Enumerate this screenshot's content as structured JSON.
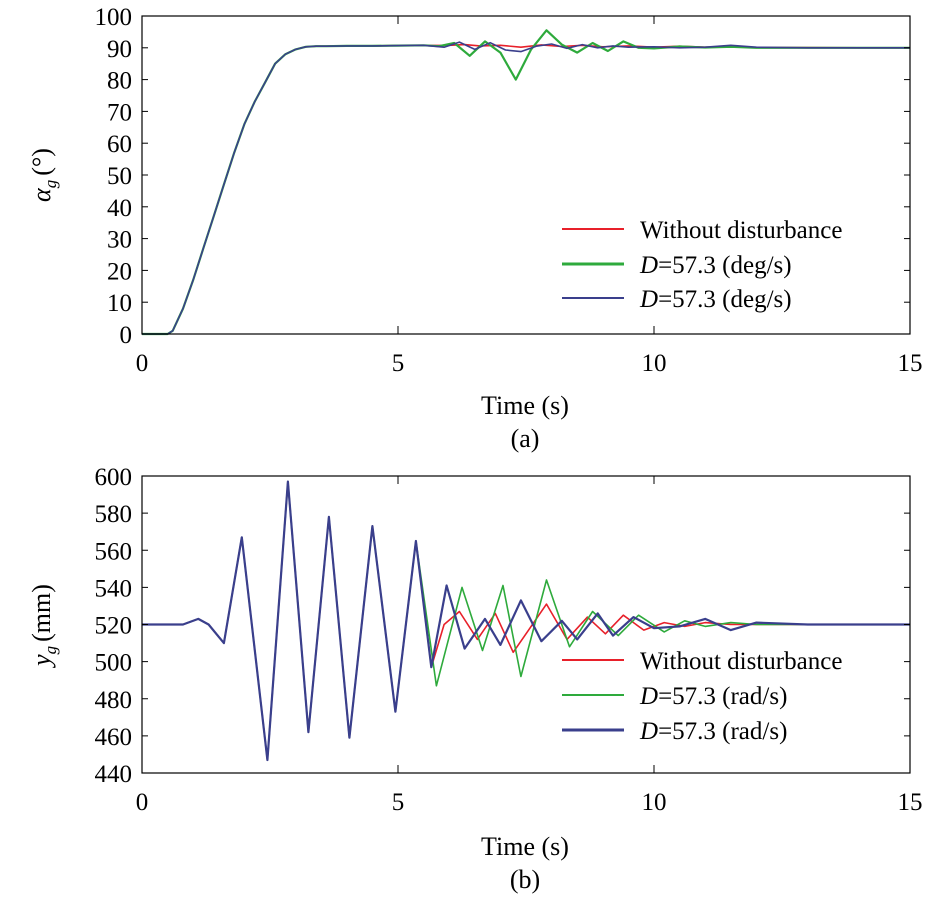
{
  "chart_data": [
    {
      "type": "line",
      "xlabel": "Time (s)",
      "ylabel_main": "α",
      "ylabel_sub": "g",
      "ylabel_unit": "(°)",
      "caption": "(a)",
      "xlim": [
        0,
        15
      ],
      "ylim": [
        0,
        100
      ],
      "xticks": [
        "0",
        "5",
        "10",
        "15"
      ],
      "yticks": [
        "0",
        "10",
        "20",
        "30",
        "40",
        "50",
        "60",
        "70",
        "80",
        "90",
        "100"
      ],
      "legend_position": "bottom-right",
      "series": [
        {
          "name": "Without disturbance",
          "color": "#e8202a",
          "x": [
            0,
            0.5,
            0.6,
            0.8,
            1.0,
            1.2,
            1.4,
            1.6,
            1.8,
            2.0,
            2.2,
            2.4,
            2.6,
            2.8,
            3.0,
            3.2,
            3.4,
            3.6,
            4.0,
            4.5,
            5.0,
            5.5,
            6.0,
            6.3,
            6.6,
            7.0,
            7.4,
            7.8,
            8.2,
            8.6,
            9.0,
            9.5,
            10.0,
            10.5,
            11.0,
            11.5,
            12.0,
            13.0,
            14.0,
            15.0
          ],
          "y": [
            0,
            0,
            1,
            8,
            17,
            27,
            37,
            47,
            57,
            66,
            73,
            79,
            85,
            88,
            89.5,
            90.3,
            90.5,
            90.5,
            90.6,
            90.6,
            90.7,
            90.7,
            90.8,
            91.0,
            90.6,
            90.8,
            90.2,
            90.9,
            90.4,
            90.8,
            90.3,
            90.6,
            90.2,
            90.5,
            90.2,
            90.3,
            90.1,
            90.1,
            90.0,
            90.0
          ]
        },
        {
          "name": "D=57.3 (deg/s)",
          "color": "#2eaa3c",
          "x": [
            0,
            0.5,
            0.6,
            0.8,
            1.0,
            1.2,
            1.4,
            1.6,
            1.8,
            2.0,
            2.2,
            2.4,
            2.6,
            2.8,
            3.0,
            3.2,
            3.4,
            3.6,
            4.0,
            4.5,
            5.0,
            5.5,
            5.8,
            6.1,
            6.4,
            6.7,
            7.0,
            7.3,
            7.6,
            7.9,
            8.2,
            8.5,
            8.8,
            9.1,
            9.4,
            9.7,
            10.0,
            10.5,
            11.0,
            11.5,
            12.0,
            13.0,
            14.0,
            15.0
          ],
          "y": [
            0,
            0,
            1,
            8,
            17,
            27,
            37,
            47,
            57,
            66,
            73,
            79,
            85,
            88,
            89.5,
            90.3,
            90.5,
            90.5,
            90.6,
            90.6,
            90.7,
            90.8,
            90.5,
            91.5,
            87.5,
            92.0,
            88.5,
            80.0,
            89.5,
            95.5,
            91.0,
            88.5,
            91.5,
            89.0,
            92.0,
            90.0,
            89.8,
            90.4,
            90.1,
            90.3,
            90.0,
            90.0,
            90.0,
            90.0
          ]
        },
        {
          "name": "D=57.3 (deg/s)",
          "color": "#3a3f8c",
          "x": [
            0,
            0.5,
            0.6,
            0.8,
            1.0,
            1.2,
            1.4,
            1.6,
            1.8,
            2.0,
            2.2,
            2.4,
            2.6,
            2.8,
            3.0,
            3.2,
            3.4,
            3.6,
            4.0,
            4.5,
            5.0,
            5.5,
            5.9,
            6.2,
            6.5,
            6.8,
            7.1,
            7.4,
            7.7,
            8.0,
            8.3,
            8.6,
            8.9,
            9.2,
            9.5,
            10.0,
            10.5,
            11.0,
            11.5,
            12.0,
            13.0,
            14.0,
            15.0
          ],
          "y": [
            0,
            0,
            1,
            8,
            17,
            27,
            37,
            47,
            57,
            66,
            73,
            79,
            85,
            88,
            89.5,
            90.3,
            90.5,
            90.5,
            90.6,
            90.6,
            90.7,
            90.8,
            90.2,
            91.8,
            89.5,
            91.6,
            89.3,
            88.8,
            90.5,
            91.2,
            89.8,
            91.0,
            90.0,
            90.6,
            90.2,
            90.3,
            90.0,
            90.2,
            90.8,
            90.2,
            90.0,
            90.0,
            90.0
          ]
        }
      ]
    },
    {
      "type": "line",
      "xlabel": "Time (s)",
      "ylabel_main": "y",
      "ylabel_sub": "g",
      "ylabel_unit": "(mm)",
      "caption": "(b)",
      "xlim": [
        0,
        15
      ],
      "ylim": [
        440,
        600
      ],
      "xticks": [
        "0",
        "5",
        "10",
        "15"
      ],
      "yticks": [
        "440",
        "460",
        "480",
        "500",
        "520",
        "540",
        "560",
        "580",
        "600"
      ],
      "legend_position": "bottom-right",
      "series": [
        {
          "name": "Without disturbance",
          "color": "#e8202a",
          "x": [
            0,
            0.8,
            1.1,
            1.3,
            1.6,
            1.95,
            2.45,
            2.85,
            3.25,
            3.65,
            4.05,
            4.5,
            4.95,
            5.35,
            5.65,
            5.9,
            6.2,
            6.55,
            6.9,
            7.25,
            7.55,
            7.9,
            8.3,
            8.7,
            9.05,
            9.4,
            9.8,
            10.2,
            10.6,
            11.0,
            11.5,
            12.0,
            13.0,
            14.0,
            15.0
          ],
          "y": [
            520,
            520,
            523,
            520,
            510,
            567,
            447,
            597,
            462,
            578,
            459,
            573,
            473,
            565,
            497,
            520,
            527,
            512,
            526,
            505,
            517,
            531,
            512,
            524,
            515,
            525,
            517,
            521,
            519,
            521,
            520,
            520,
            520,
            520,
            520
          ]
        },
        {
          "name": "D=57.3 (rad/s)",
          "color": "#2eaa3c",
          "x": [
            0,
            0.8,
            1.1,
            1.3,
            1.6,
            1.95,
            2.45,
            2.85,
            3.25,
            3.65,
            4.05,
            4.5,
            4.95,
            5.35,
            5.75,
            6.25,
            6.65,
            7.05,
            7.4,
            7.9,
            8.35,
            8.8,
            9.3,
            9.7,
            10.2,
            10.6,
            11.0,
            11.5,
            12.0,
            13.0,
            14.0,
            15.0
          ],
          "y": [
            520,
            520,
            523,
            520,
            510,
            567,
            447,
            597,
            462,
            578,
            459,
            573,
            473,
            565,
            487,
            540,
            506,
            541,
            492,
            544,
            508,
            527,
            514,
            525,
            516,
            522,
            519,
            521,
            520,
            520,
            520,
            520
          ]
        },
        {
          "name": "D=57.3 (rad/s)",
          "color": "#3a3f8c",
          "x": [
            0,
            0.8,
            1.1,
            1.3,
            1.6,
            1.95,
            2.45,
            2.85,
            3.25,
            3.65,
            4.05,
            4.5,
            4.95,
            5.35,
            5.65,
            5.95,
            6.3,
            6.7,
            7.0,
            7.4,
            7.8,
            8.2,
            8.5,
            8.9,
            9.2,
            9.6,
            10.0,
            10.5,
            11.0,
            11.5,
            12.0,
            13.0,
            14.0,
            15.0
          ],
          "y": [
            520,
            520,
            523,
            520,
            510,
            567,
            447,
            597,
            462,
            578,
            459,
            573,
            473,
            565,
            497,
            541,
            507,
            523,
            509,
            533,
            511,
            522,
            512,
            526,
            514,
            524,
            518,
            519,
            523,
            517,
            521,
            520,
            520,
            520
          ]
        }
      ]
    }
  ]
}
